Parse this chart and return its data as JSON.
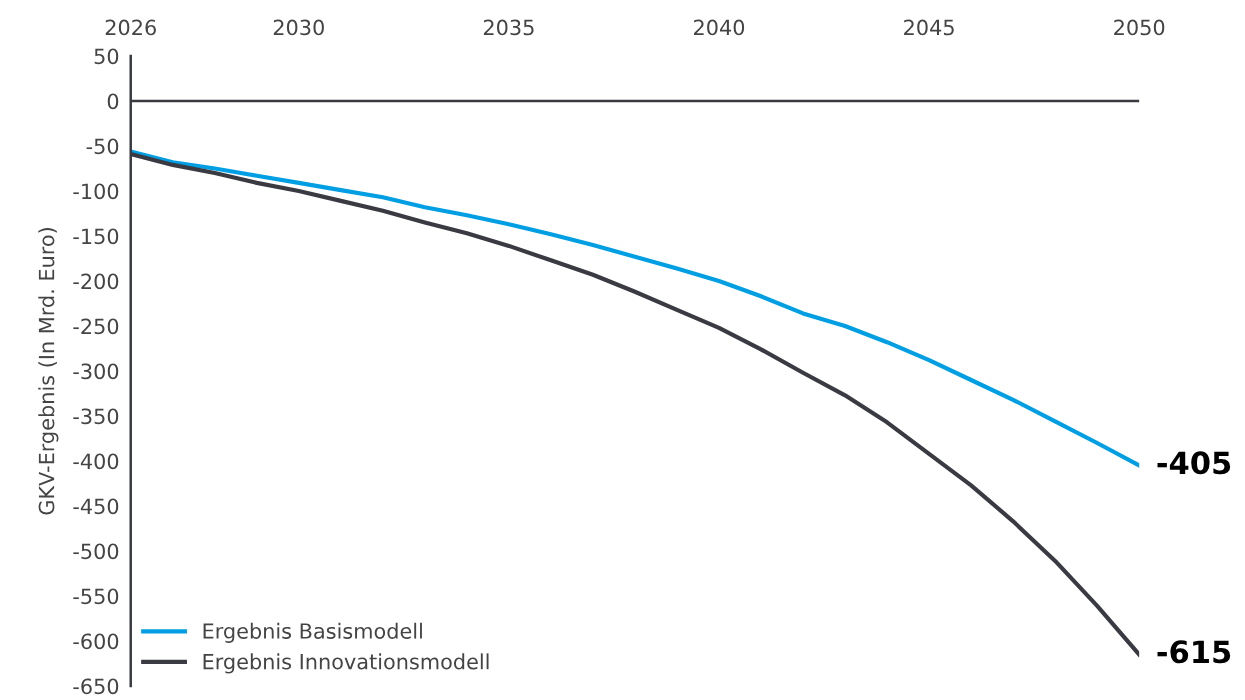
{
  "chart_data": {
    "type": "line",
    "ylabel": "GKV-Ergebnis (In Mrd. Euro)",
    "x": [
      2026,
      2027,
      2028,
      2029,
      2030,
      2031,
      2032,
      2033,
      2034,
      2035,
      2036,
      2037,
      2038,
      2039,
      2040,
      2041,
      2042,
      2043,
      2044,
      2045,
      2046,
      2047,
      2048,
      2049,
      2050
    ],
    "series": [
      {
        "name": "Ergebnis Basismodell",
        "color": "#009fe3",
        "values": [
          -56,
          -68,
          -75,
          -83,
          -91,
          -99,
          -107,
          -118,
          -127,
          -137,
          -148,
          -160,
          -173,
          -186,
          -200,
          -217,
          -236,
          -250,
          -268,
          -288,
          -310,
          -332,
          -356,
          -380,
          -405
        ]
      },
      {
        "name": "Ergebnis Innovationsmodell",
        "color": "#3a3b42",
        "values": [
          -59,
          -71,
          -80,
          -91,
          -100,
          -111,
          -122,
          -135,
          -147,
          -161,
          -177,
          -193,
          -212,
          -232,
          -252,
          -276,
          -302,
          -327,
          -357,
          -392,
          -427,
          -467,
          -511,
          -561,
          -615
        ]
      }
    ],
    "annotations": [
      {
        "text": "-405",
        "x": 2050,
        "y": -405
      },
      {
        "text": "-615",
        "x": 2050,
        "y": -615
      }
    ],
    "xlim": [
      2026,
      2050
    ],
    "xticks": [
      2026,
      2030,
      2035,
      2040,
      2045,
      2050
    ],
    "ylim": [
      -650,
      50
    ],
    "yticks": [
      50,
      0,
      -50,
      -100,
      -150,
      -200,
      -250,
      -300,
      -350,
      -400,
      -450,
      -500,
      -550,
      -600,
      -650
    ],
    "ref_lines": [
      {
        "axis": "y",
        "value": 0,
        "color": "#3a3b42"
      }
    ],
    "grid": false,
    "legend": "bottom left",
    "marker": "none",
    "line_style": "solid"
  }
}
